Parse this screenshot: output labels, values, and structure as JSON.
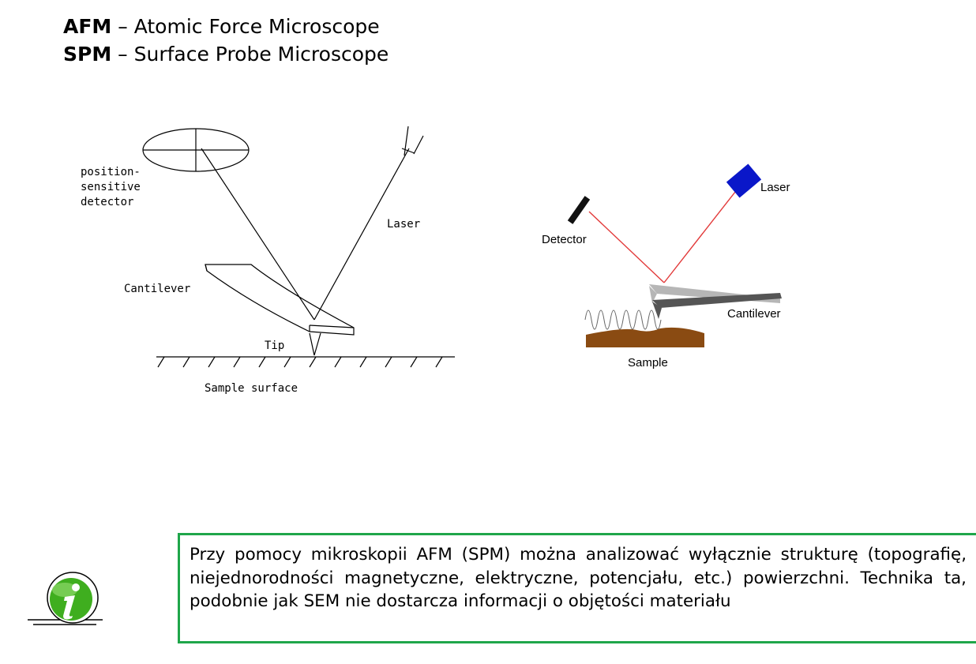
{
  "header": {
    "line1": {
      "abbr": "AFM",
      "sep": " – ",
      "text": "Atomic Force Microscope"
    },
    "line2": {
      "abbr": "SPM",
      "sep": " – ",
      "text": "Surface Probe Microscope"
    }
  },
  "diagram_left": {
    "labels": {
      "detector_1": "position-",
      "detector_2": "sensitive",
      "detector_3": "detector",
      "laser": "Laser",
      "cantilever": "Cantilever",
      "tip": "Tip",
      "sample": "Sample surface"
    }
  },
  "diagram_right": {
    "labels": {
      "laser": "Laser",
      "detector": "Detector",
      "cantilever": "Cantilever",
      "sample": "Sample"
    },
    "colors": {
      "laser": "#0a17c9",
      "beam": "#e23a3a",
      "sample": "#8a4b12"
    }
  },
  "note": {
    "text": "Przy pomocy mikroskopii AFM (SPM) można analizować wyłącznie strukturę (topografię, niejednorodności magnetyczne, elektryczne, potencjału, etc.) powierzchni. Technika ta, podobnie jak SEM nie dostarcza informacji o objętości materiału",
    "border_color": "#1fa64a",
    "icon": "info-icon"
  }
}
